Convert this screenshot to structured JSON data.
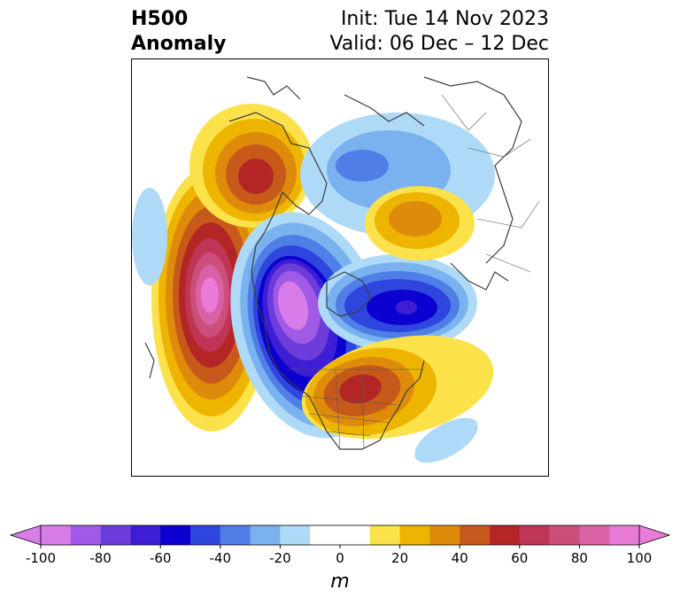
{
  "title": {
    "variable": "H500",
    "kind": "Anomaly",
    "init": "Init: Tue 14 Nov 2023",
    "valid": "Valid: 06 Dec – 12 Dec"
  },
  "map": {
    "region": "North America / Arctic polar stereographic",
    "anomaly_centers": [
      {
        "name": "ridge-west-canada-alaska",
        "value": 60
      },
      {
        "name": "ridge-northeast-pacific",
        "value": 90
      },
      {
        "name": "trough-west-north-america",
        "value": -90
      },
      {
        "name": "trough-hudson-bay",
        "value": -60
      },
      {
        "name": "ridge-northeast-us",
        "value": 60
      },
      {
        "name": "ridge-siberia",
        "value": 50
      },
      {
        "name": "trough-arctic-ocean",
        "value": -30
      }
    ]
  },
  "colorbar": {
    "unit_label": "m",
    "ticks": [
      "-100",
      "-80",
      "-60",
      "-40",
      "-20",
      "0",
      "20",
      "40",
      "60",
      "80",
      "100"
    ],
    "bins": [
      {
        "lo": -100,
        "hi": -90,
        "color": "#d77ce9"
      },
      {
        "lo": -90,
        "hi": -80,
        "color": "#a05ae5"
      },
      {
        "lo": -80,
        "hi": -70,
        "color": "#6d3ddc"
      },
      {
        "lo": -70,
        "hi": -60,
        "color": "#3d1ed4"
      },
      {
        "lo": -60,
        "hi": -50,
        "color": "#0b00d0"
      },
      {
        "lo": -50,
        "hi": -40,
        "color": "#2e45de"
      },
      {
        "lo": -40,
        "hi": -30,
        "color": "#4e7ee6"
      },
      {
        "lo": -30,
        "hi": -20,
        "color": "#7ab2ef"
      },
      {
        "lo": -20,
        "hi": -10,
        "color": "#aedaf7"
      },
      {
        "lo": -10,
        "hi": 10,
        "color": "#ffffff"
      },
      {
        "lo": 10,
        "hi": 20,
        "color": "#fbe14a"
      },
      {
        "lo": 20,
        "hi": 30,
        "color": "#eeb500"
      },
      {
        "lo": 30,
        "hi": 40,
        "color": "#de8b0c"
      },
      {
        "lo": 40,
        "hi": 50,
        "color": "#c75a1a"
      },
      {
        "lo": 50,
        "hi": 60,
        "color": "#b42626"
      },
      {
        "lo": 60,
        "hi": 70,
        "color": "#bf3556"
      },
      {
        "lo": 70,
        "hi": 80,
        "color": "#cb4f7a"
      },
      {
        "lo": 80,
        "hi": 90,
        "color": "#d862a4"
      },
      {
        "lo": 90,
        "hi": 100,
        "color": "#e87ad8"
      }
    ],
    "extend_low_color": "#d77ce9",
    "extend_high_color": "#e87ad8"
  }
}
